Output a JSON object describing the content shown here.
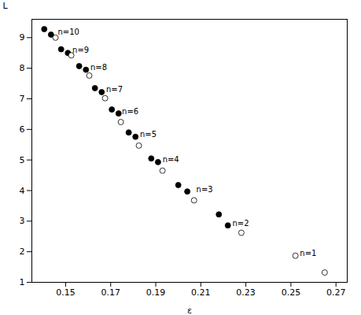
{
  "chart_data": {
    "type": "scatter",
    "xlabel": "ε",
    "ylabel": "L",
    "xlim": [
      0.135,
      0.275
    ],
    "ylim": [
      1.0,
      9.6
    ],
    "xticks": [
      0.15,
      0.17,
      0.19,
      0.21,
      0.23,
      0.25,
      0.27
    ],
    "yticks": [
      1,
      2,
      3,
      4,
      5,
      6,
      7,
      8,
      9
    ],
    "grid": false,
    "series": [
      {
        "color": "black",
        "marker": "filled",
        "x": [
          0.1405,
          0.1435,
          0.148,
          0.151,
          0.156,
          0.159,
          0.163,
          0.166,
          0.1705,
          0.1735,
          0.178,
          0.181,
          0.188,
          0.191,
          0.2,
          0.204,
          0.218,
          0.222
        ],
        "values": [
          9.28,
          9.1,
          8.62,
          8.5,
          8.07,
          7.95,
          7.35,
          7.22,
          6.65,
          6.52,
          5.9,
          5.76,
          5.05,
          4.93,
          4.18,
          3.97,
          3.22,
          2.86
        ]
      },
      {
        "color": "black",
        "marker": "open",
        "x": [
          0.1455,
          0.1525,
          0.1605,
          0.1675,
          0.1745,
          0.1825,
          0.193,
          0.207,
          0.228,
          0.252,
          0.265
        ],
        "values": [
          9.0,
          8.42,
          7.76,
          7.02,
          6.24,
          5.47,
          4.65,
          3.68,
          2.62,
          1.87,
          1.32
        ]
      }
    ],
    "annotations": [
      {
        "x": 0.1465,
        "y": 9.1,
        "text": "n=10"
      },
      {
        "x": 0.153,
        "y": 8.5,
        "text": "n=9"
      },
      {
        "x": 0.161,
        "y": 7.94,
        "text": "n=8"
      },
      {
        "x": 0.168,
        "y": 7.22,
        "text": "n=7"
      },
      {
        "x": 0.175,
        "y": 6.5,
        "text": "n=6"
      },
      {
        "x": 0.183,
        "y": 5.75,
        "text": "n=5"
      },
      {
        "x": 0.193,
        "y": 4.92,
        "text": "n=4"
      },
      {
        "x": 0.208,
        "y": 3.95,
        "text": "n=3"
      },
      {
        "x": 0.224,
        "y": 2.84,
        "text": "n=2"
      },
      {
        "x": 0.254,
        "y": 1.86,
        "text": "n=1"
      }
    ]
  }
}
